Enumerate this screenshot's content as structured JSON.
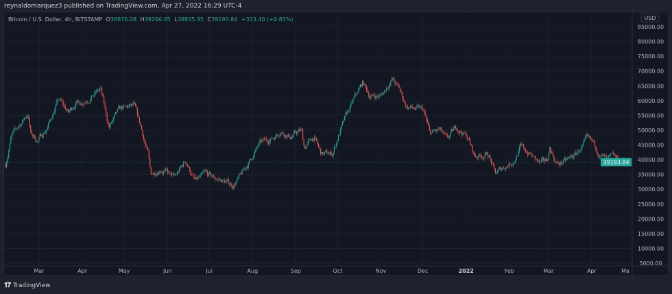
{
  "header": {
    "published": "reynaldomarquez3 published on TradingView.com, Apr 27, 2022 16:29 UTC-4"
  },
  "legend": {
    "symbol": "Bitcoin / U.S. Dollar, 4h, BITSTAMP",
    "o_label": "O",
    "o": "38876.08",
    "h_label": "H",
    "h": "39266.05",
    "l_label": "L",
    "l": "38835.95",
    "c_label": "C",
    "c": "39193.84",
    "change": "+313.40 (+0.81%)"
  },
  "footer": {
    "brand": "TradingView",
    "logo": "TV"
  },
  "colors": {
    "up": "#26a69a",
    "down": "#ef5350",
    "background": "#131722",
    "grid": "#1c2030"
  },
  "chart_data": {
    "type": "candlestick",
    "symbol": "BTCUSD",
    "interval": "4h",
    "exchange": "BITSTAMP",
    "currency_label": "USD",
    "last_price": 39193.84,
    "last_price_label": "39193.84",
    "ylim": [
      5000,
      88000
    ],
    "y_ticks": [
      "85000.00",
      "80000.00",
      "75000.00",
      "70000.00",
      "65000.00",
      "60000.00",
      "55000.00",
      "50000.00",
      "45000.00",
      "40000.00",
      "35000.00",
      "30000.00",
      "25000.00",
      "20000.00",
      "15000.00",
      "10000.00",
      "5000.00"
    ],
    "x_ticks": [
      {
        "date": "2021-03-01",
        "label": "Mar"
      },
      {
        "date": "2021-04-01",
        "label": "Apr"
      },
      {
        "date": "2021-05-01",
        "label": "May"
      },
      {
        "date": "2021-06-01",
        "label": "Jun"
      },
      {
        "date": "2021-07-01",
        "label": "Jul"
      },
      {
        "date": "2021-08-01",
        "label": "Aug"
      },
      {
        "date": "2021-09-01",
        "label": "Sep"
      },
      {
        "date": "2021-10-01",
        "label": "Oct"
      },
      {
        "date": "2021-11-01",
        "label": "Nov"
      },
      {
        "date": "2021-12-01",
        "label": "Dec"
      },
      {
        "date": "2022-01-01",
        "label": "2022",
        "bold": true
      },
      {
        "date": "2022-02-01",
        "label": "Feb"
      },
      {
        "date": "2022-03-01",
        "label": "Mar"
      },
      {
        "date": "2022-04-01",
        "label": "Apr"
      },
      {
        "date": "2022-05-01",
        "label": "Ma"
      }
    ],
    "xlim": [
      "2021-02-05",
      "2022-04-30"
    ],
    "approx_close_path": [
      [
        "2021-02-05",
        38400
      ],
      [
        "2021-02-09",
        47700
      ],
      [
        "2021-02-21",
        55800
      ],
      [
        "2021-02-23",
        48800
      ],
      [
        "2021-02-28",
        46500
      ],
      [
        "2021-03-07",
        51000
      ],
      [
        "2021-03-15",
        60400
      ],
      [
        "2021-03-22",
        55800
      ],
      [
        "2021-03-27",
        59300
      ],
      [
        "2021-04-01",
        59700
      ],
      [
        "2021-04-08",
        61600
      ],
      [
        "2021-04-14",
        63900
      ],
      [
        "2021-04-20",
        51000
      ],
      [
        "2021-04-28",
        57000
      ],
      [
        "2021-05-08",
        58100
      ],
      [
        "2021-05-13",
        51000
      ],
      [
        "2021-05-18",
        41900
      ],
      [
        "2021-05-20",
        35000
      ],
      [
        "2021-05-27",
        37200
      ],
      [
        "2021-06-06",
        33800
      ],
      [
        "2021-06-14",
        39600
      ],
      [
        "2021-06-21",
        32600
      ],
      [
        "2021-06-28",
        35000
      ],
      [
        "2021-07-08",
        33300
      ],
      [
        "2021-07-18",
        31400
      ],
      [
        "2021-07-23",
        34200
      ],
      [
        "2021-07-30",
        39600
      ],
      [
        "2021-08-06",
        45300
      ],
      [
        "2021-08-16",
        47700
      ],
      [
        "2021-08-21",
        50000
      ],
      [
        "2021-08-28",
        47700
      ],
      [
        "2021-09-05",
        50000
      ],
      [
        "2021-09-07",
        44200
      ],
      [
        "2021-09-14",
        47700
      ],
      [
        "2021-09-19",
        41900
      ],
      [
        "2021-09-27",
        41900
      ],
      [
        "2021-10-02",
        48800
      ],
      [
        "2021-10-07",
        54700
      ],
      [
        "2021-10-14",
        61600
      ],
      [
        "2021-10-19",
        66200
      ],
      [
        "2021-10-24",
        61600
      ],
      [
        "2021-11-01",
        61600
      ],
      [
        "2021-11-09",
        67400
      ],
      [
        "2021-11-14",
        63900
      ],
      [
        "2021-11-19",
        58100
      ],
      [
        "2021-11-26",
        57000
      ],
      [
        "2021-12-01",
        57000
      ],
      [
        "2021-12-06",
        48800
      ],
      [
        "2021-12-13",
        50000
      ],
      [
        "2021-12-18",
        46500
      ],
      [
        "2021-12-25",
        51000
      ],
      [
        "2022-01-02",
        47700
      ],
      [
        "2022-01-07",
        41200
      ],
      [
        "2022-01-17",
        41900
      ],
      [
        "2022-01-22",
        35000
      ],
      [
        "2022-01-27",
        37200
      ],
      [
        "2022-02-04",
        39600
      ],
      [
        "2022-02-09",
        44200
      ],
      [
        "2022-02-16",
        41900
      ],
      [
        "2022-02-23",
        38400
      ],
      [
        "2022-02-28",
        39600
      ],
      [
        "2022-03-02",
        44200
      ],
      [
        "2022-03-07",
        38400
      ],
      [
        "2022-03-14",
        39600
      ],
      [
        "2022-03-21",
        41900
      ],
      [
        "2022-03-28",
        46500
      ],
      [
        "2022-04-02",
        45300
      ],
      [
        "2022-04-07",
        41900
      ],
      [
        "2022-04-12",
        39600
      ],
      [
        "2022-04-17",
        40700
      ],
      [
        "2022-04-22",
        39100
      ],
      [
        "2022-04-27",
        39193.84
      ]
    ]
  }
}
